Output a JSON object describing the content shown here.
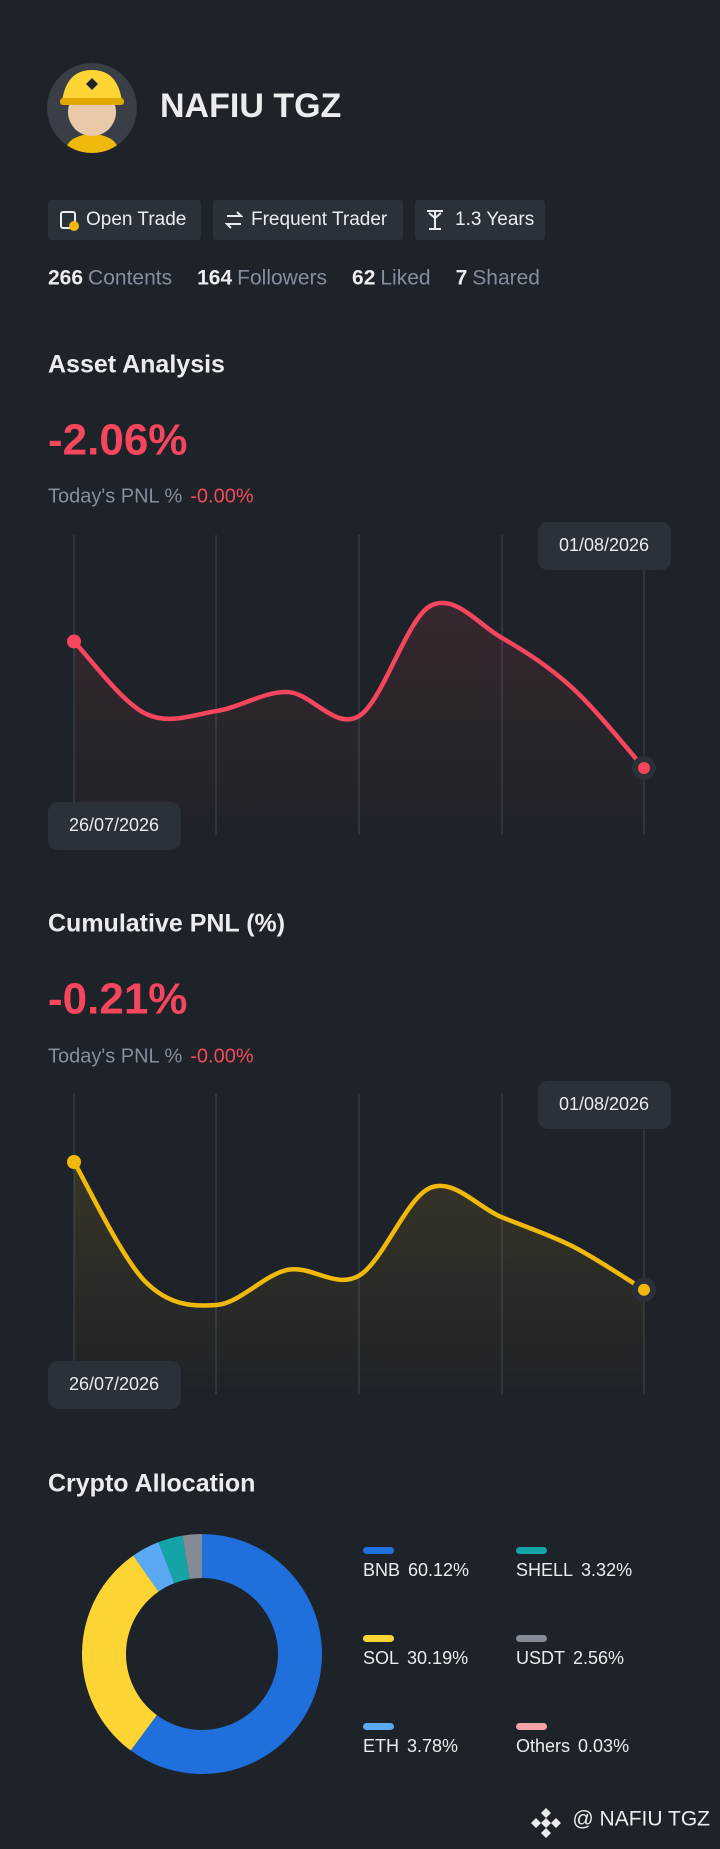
{
  "profile": {
    "name": "NAFIU TGZ",
    "badges": [
      "Open Trade",
      "Frequent Trader",
      "1.3 Years"
    ],
    "stats": [
      {
        "value": 266,
        "label": "Contents"
      },
      {
        "value": 164,
        "label": "Followers"
      },
      {
        "value": 62,
        "label": "Liked"
      },
      {
        "value": 7,
        "label": "Shared"
      }
    ]
  },
  "asset_analysis": {
    "title": "Asset Analysis",
    "value": "-2.06%",
    "pnl_label": "Today's PNL %",
    "pnl_value": "-0.00%",
    "chart": {
      "type": "line",
      "color": "#f6465d",
      "start_label": "26/07/2026",
      "end_label": "01/08/2026",
      "values": [
        1.47,
        0.9,
        0.92,
        1.07,
        0.88,
        1.75,
        1.5,
        1.1,
        0.47
      ]
    }
  },
  "cumulative_pnl": {
    "title": "Cumulative PNL (%)",
    "value": "-0.21%",
    "pnl_label": "Today's PNL %",
    "pnl_value": "-0.00%",
    "chart": {
      "type": "line",
      "color": "#f0b90b",
      "start_label": "26/07/2026",
      "end_label": "01/08/2026",
      "values": [
        1.62,
        0.6,
        0.4,
        0.7,
        0.65,
        1.4,
        1.15,
        0.9,
        0.53
      ]
    }
  },
  "allocation": {
    "title": "Crypto Allocation",
    "type": "donut",
    "categories": [
      "BNB",
      "SOL",
      "ETH",
      "SHELL",
      "USDT",
      "Others"
    ],
    "values": [
      60.12,
      30.19,
      3.78,
      3.32,
      2.56,
      0.03
    ],
    "value_labels": [
      "60.12%",
      "30.19%",
      "3.78%",
      "3.32%",
      "2.56%",
      "0.03%"
    ],
    "colors": [
      "#1f6fdc",
      "#fcd535",
      "#5aa9f5",
      "#14a3a6",
      "#858b94",
      "#f6a0a8"
    ]
  },
  "footer": {
    "handle": "@ NAFIU TGZ"
  }
}
